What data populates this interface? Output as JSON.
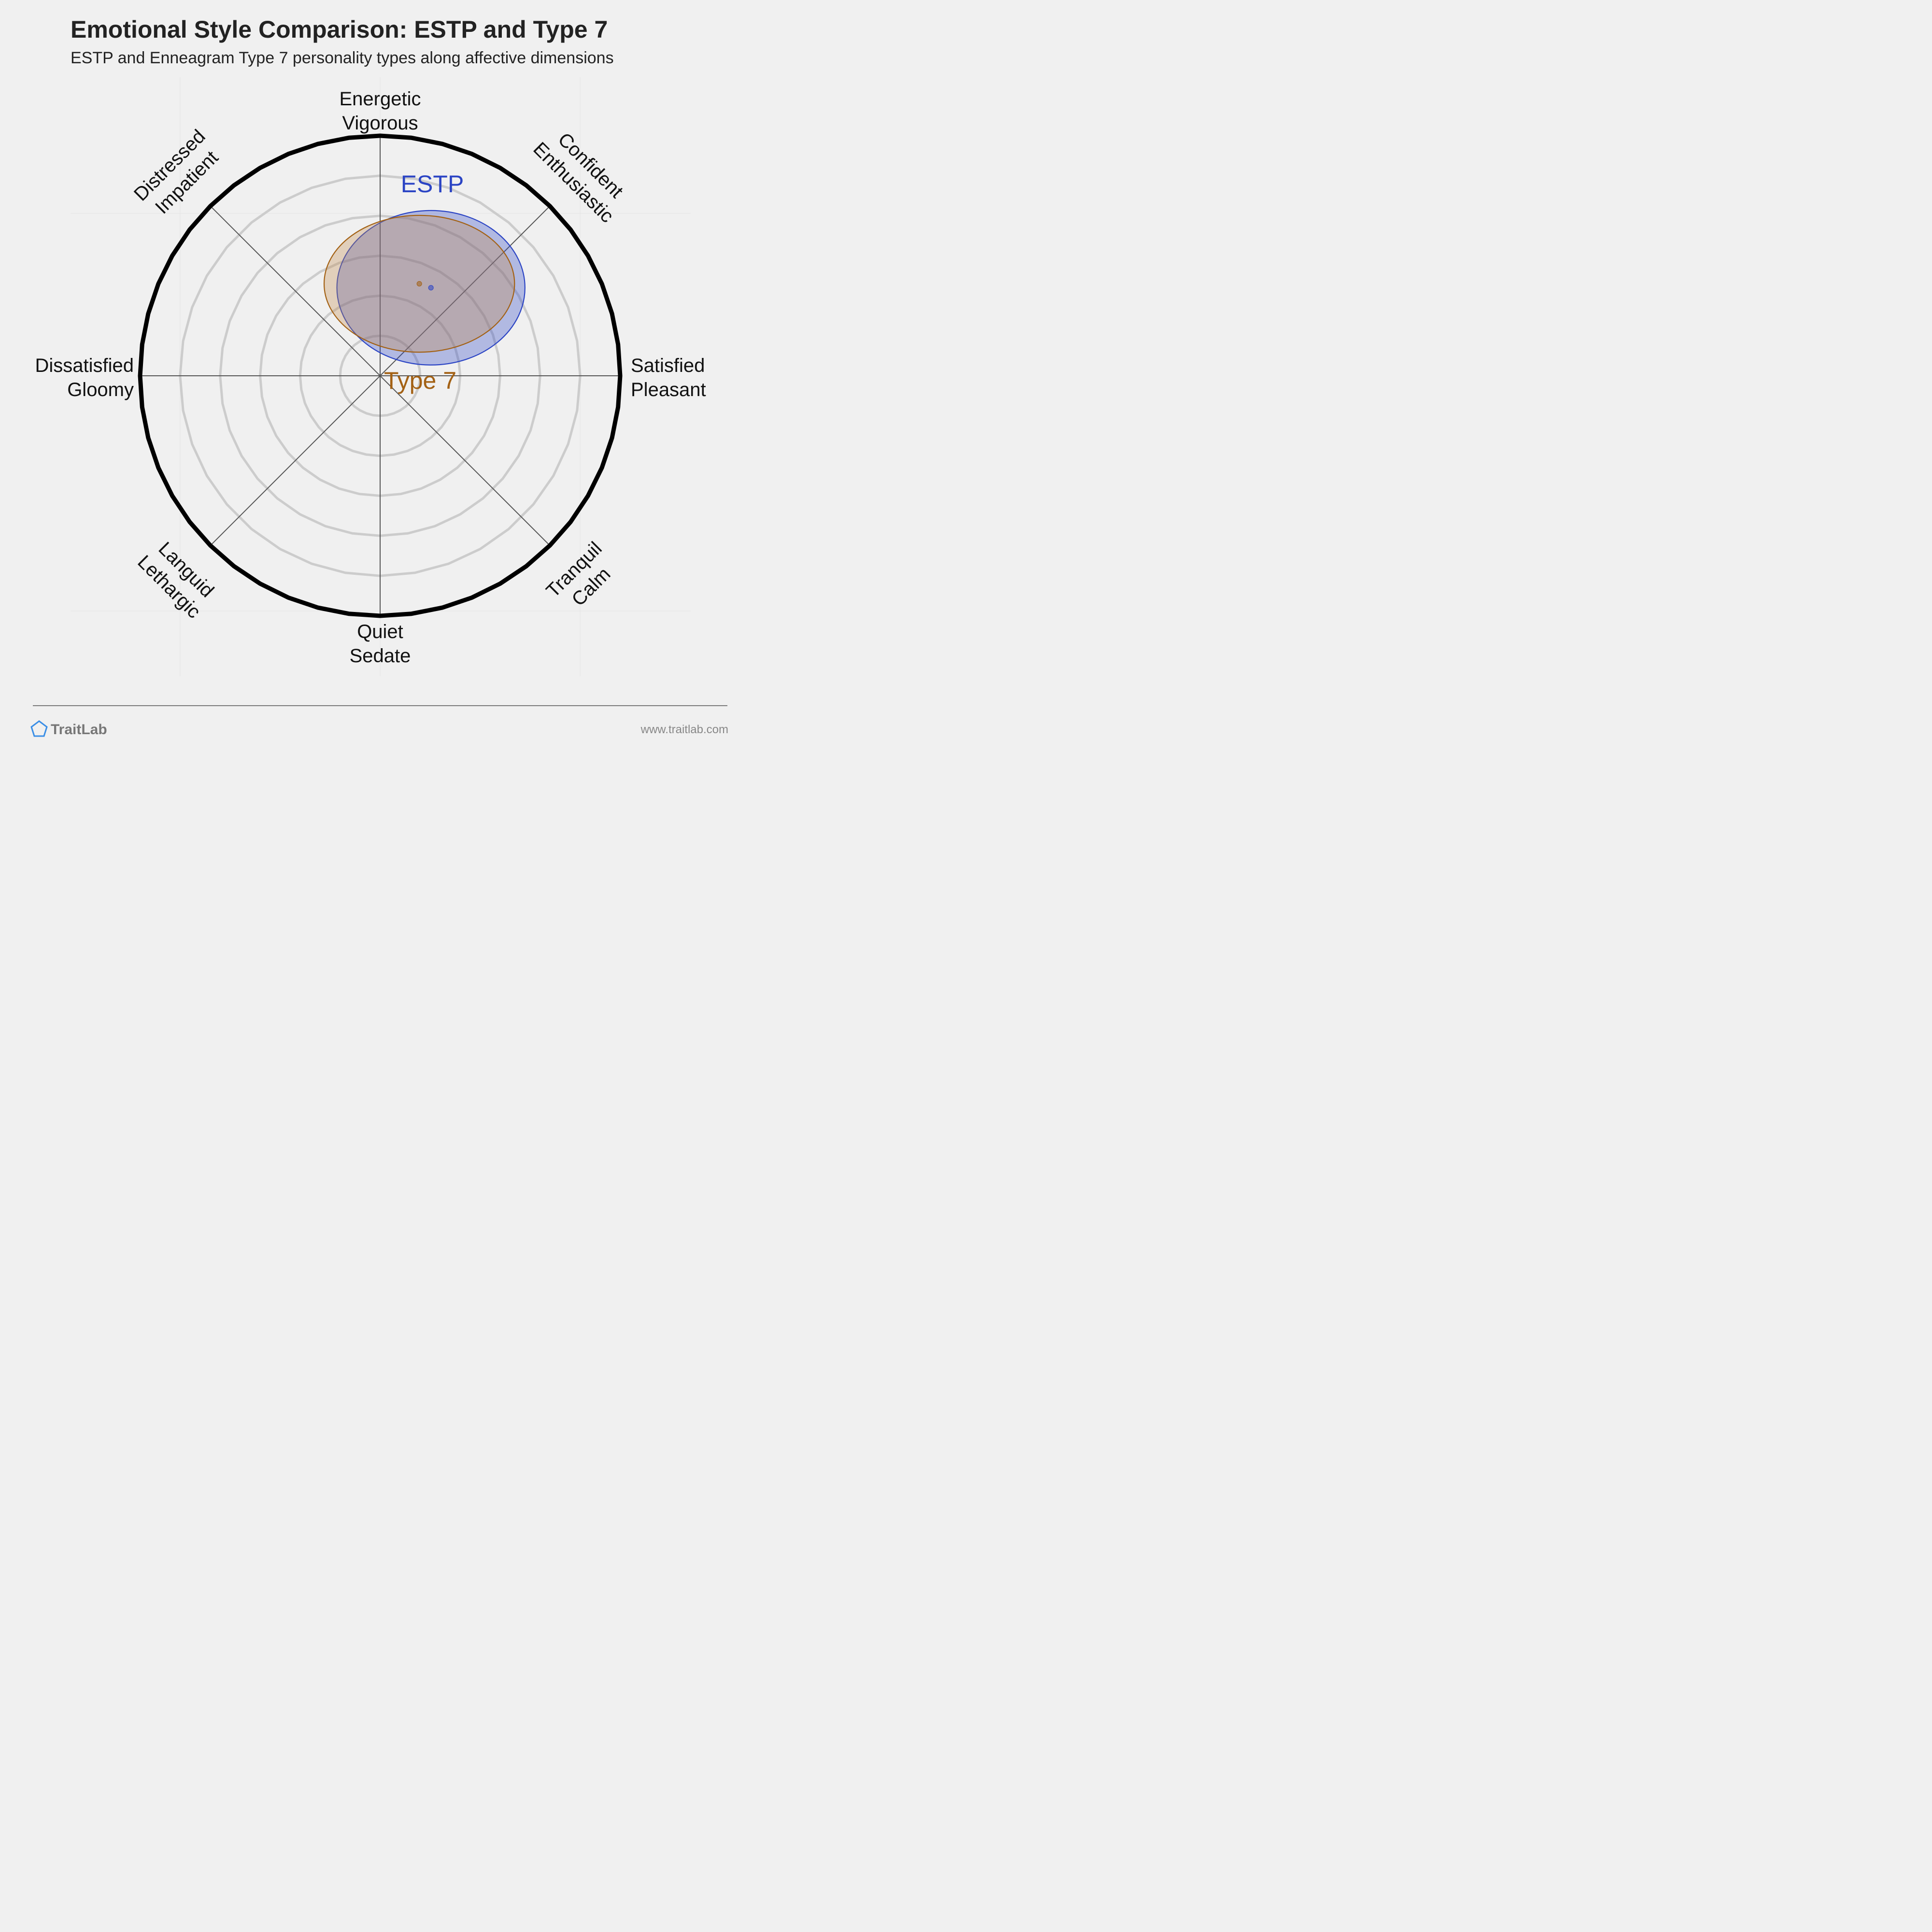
{
  "chart_data": {
    "type": "scatter",
    "title": "Emotional Style Comparison: ESTP and Type 7",
    "subtitle": "ESTP and Enneagram Type 7 personality types along affective dimensions",
    "x_range": [
      -6,
      6
    ],
    "y_range": [
      -6,
      6
    ],
    "rings": 6,
    "axes": [
      {
        "lines": [
          "Energetic",
          "Vigorous"
        ],
        "angle_deg": 90
      },
      {
        "lines": [
          "Confident",
          "Enthusiastic"
        ],
        "angle_deg": 45
      },
      {
        "lines": [
          "Satisfied",
          "Pleasant"
        ],
        "angle_deg": 0
      },
      {
        "lines": [
          "Tranquil",
          "Calm"
        ],
        "angle_deg": -45
      },
      {
        "lines": [
          "Quiet",
          "Sedate"
        ],
        "angle_deg": -90
      },
      {
        "lines": [
          "Languid",
          "Lethargic"
        ],
        "angle_deg": -135
      },
      {
        "lines": [
          "Dissatisfied",
          "Gloomy"
        ],
        "angle_deg": 180
      },
      {
        "lines": [
          "Distressed",
          "Impatient"
        ],
        "angle_deg": 135
      }
    ],
    "series": [
      {
        "name": "ESTP",
        "x": 1.27,
        "y": 2.2,
        "rx": 2.35,
        "ry": 1.93,
        "color": "#2b44c4",
        "fill": "#2b44c4"
      },
      {
        "name": "Type 7",
        "x": 0.98,
        "y": 2.3,
        "rx": 2.38,
        "ry": 1.71,
        "color": "#a36114",
        "fill": "#c08a4a"
      }
    ]
  },
  "footer": {
    "brand": "TraitLab",
    "url": "www.traitlab.com"
  },
  "colors": {
    "background": "#f0f0f0",
    "ring": "#cccccc",
    "outer_ring": "#000000",
    "axis_line": "#555555",
    "estp": "#2b44c4",
    "type7": "#a36114",
    "logo": "#3a8ee6"
  }
}
